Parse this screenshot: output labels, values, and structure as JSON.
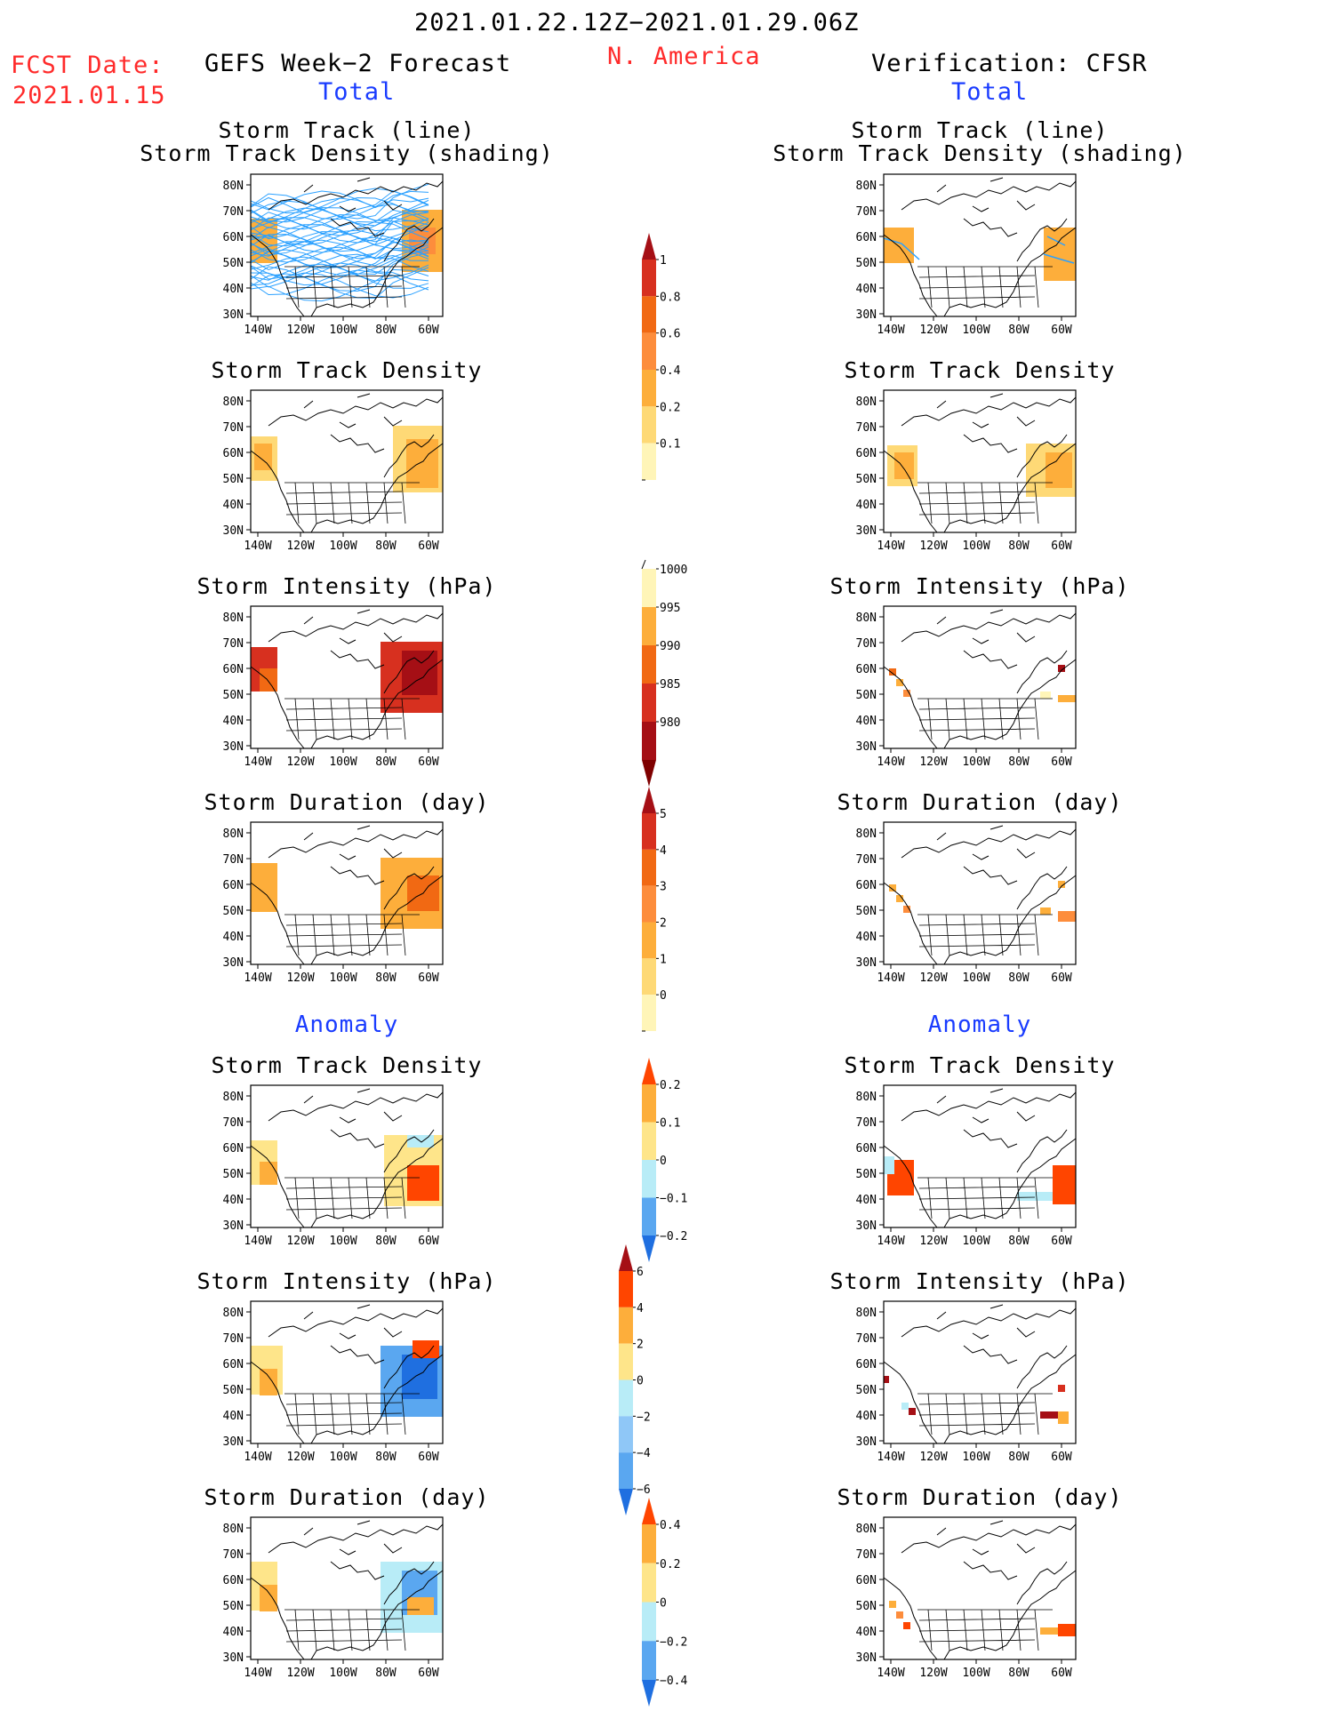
{
  "header": {
    "date_range": "2021.01.22.12Z−2021.01.29.06Z",
    "region": "N. America",
    "fcst_label": "FCST Date:",
    "fcst_date": "2021.01.15",
    "left_title": "GEFS Week−2 Forecast",
    "right_title": "Verification: CFSR"
  },
  "sections": {
    "total": "Total",
    "anomaly": "Anomaly"
  },
  "panel_titles": {
    "track_line": "Storm Track (line)",
    "track_shading": "Storm Track Density (shading)",
    "density": "Storm Track Density",
    "intensity": "Storm Intensity (hPa)",
    "duration": "Storm Duration (day)"
  },
  "map": {
    "lat_labels": [
      "80N",
      "70N",
      "60N",
      "50N",
      "40N",
      "30N"
    ],
    "lon_labels": [
      "140W",
      "120W",
      "100W",
      "80W",
      "60W"
    ]
  },
  "colorbars": [
    {
      "id": "density",
      "labels": [
        "1",
        "0.8",
        "0.6",
        "0.4",
        "0.2",
        "0.1"
      ],
      "colors": [
        "#a50f15",
        "#d7301f",
        "#f16913",
        "#fd8d3c",
        "#fdae3b",
        "#fed976",
        "#fff5b8"
      ]
    },
    {
      "id": "intensity",
      "labels": [
        "1000",
        "995",
        "990",
        "985",
        "980"
      ],
      "colors": [
        "#fff5b8",
        "#fdae3b",
        "#f16913",
        "#d7301f",
        "#a50f15",
        "#7f0000"
      ]
    },
    {
      "id": "duration",
      "labels": [
        "5",
        "4",
        "3",
        "2",
        "1",
        "0"
      ],
      "colors": [
        "#a50f15",
        "#d7301f",
        "#f16913",
        "#fd8d3c",
        "#fdae3b",
        "#fed976",
        "#fff5b8"
      ]
    },
    {
      "id": "density_anom",
      "labels": [
        "0.2",
        "0.1",
        "0",
        "−0.1",
        "−0.2"
      ],
      "colors": [
        "#ff4500",
        "#fdae3b",
        "#fee58a",
        "#b8ecf7",
        "#5aa7f0",
        "#1f6fe0"
      ]
    },
    {
      "id": "intensity_anom",
      "labels": [
        "6",
        "4",
        "2",
        "0",
        "−2",
        "−4",
        "−6"
      ],
      "colors": [
        "#a50f15",
        "#ff4500",
        "#fdae3b",
        "#fee58a",
        "#b8ecf7",
        "#8fc7f7",
        "#5aa7f0",
        "#1f6fe0"
      ]
    },
    {
      "id": "duration_anom",
      "labels": [
        "0.4",
        "0.2",
        "0",
        "−0.2",
        "−0.4"
      ],
      "colors": [
        "#ff4500",
        "#fdae3b",
        "#fee58a",
        "#b8ecf7",
        "#5aa7f0",
        "#1f6fe0"
      ]
    }
  ],
  "colors": {
    "red_text": "#ff2a2a",
    "blue_text": "#1a3cff",
    "track_line": "#2aa0ff"
  }
}
